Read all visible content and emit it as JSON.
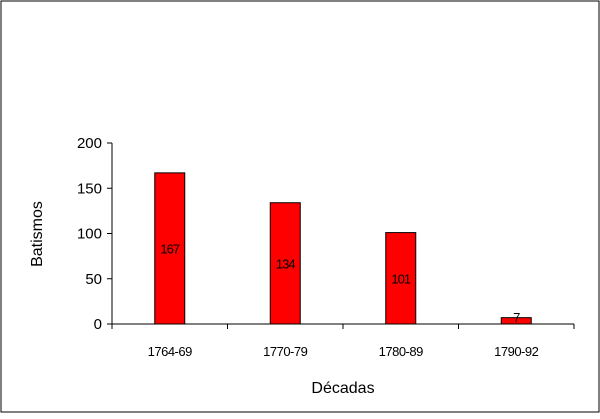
{
  "chart_data": {
    "type": "bar",
    "categories": [
      "1764-69",
      "1770-79",
      "1780-89",
      "1790-92"
    ],
    "series": [
      {
        "values": [
          167,
          134,
          101,
          7
        ],
        "color": "#ff0000",
        "data_labels": [
          "167",
          "134",
          "101",
          "7"
        ]
      }
    ],
    "xlabel": "Décadas",
    "ylabel": "Batismos",
    "ylim": [
      0,
      200
    ],
    "yticks": [
      0,
      50,
      100,
      150,
      200
    ],
    "grid": false,
    "legend": "none"
  }
}
